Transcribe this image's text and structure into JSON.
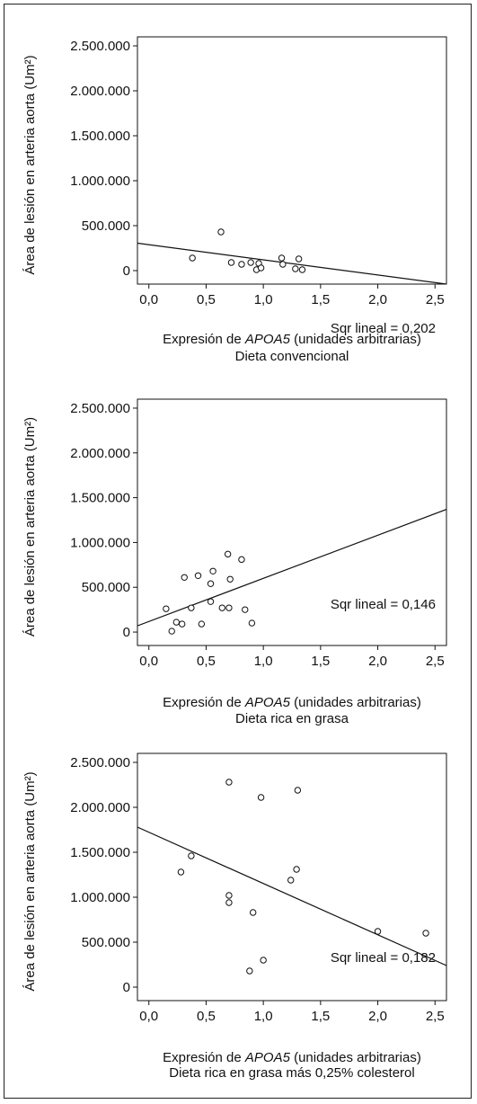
{
  "chart_data": [
    {
      "type": "scatter",
      "ylabel": "Área de lesión en arteria aorta (Um²)",
      "xlabel_prefix": "Expresión de ",
      "xlabel_gene": "APOA5",
      "xlabel_suffix": " (unidades arbitrarias)",
      "subtitle": "Dieta convencional",
      "annotation": "Sqr lineal = 0,202",
      "xlim": [
        -0.1,
        2.6
      ],
      "ylim": [
        -150000,
        2600000
      ],
      "xticks": [
        0,
        0.5,
        1.0,
        1.5,
        2.0,
        2.5
      ],
      "xtick_labels": [
        "0,0",
        "0,5",
        "1,0",
        "1,5",
        "2,0",
        "2,5"
      ],
      "yticks": [
        0,
        500000,
        1000000,
        1500000,
        2000000,
        2500000
      ],
      "ytick_labels": [
        "0",
        "500.000",
        "1.000.000",
        "1.500.000",
        "2.000.000",
        "2.500.000"
      ],
      "points": [
        {
          "x": 0.38,
          "y": 140000
        },
        {
          "x": 0.63,
          "y": 430000
        },
        {
          "x": 0.72,
          "y": 90000
        },
        {
          "x": 0.81,
          "y": 70000
        },
        {
          "x": 0.89,
          "y": 90000
        },
        {
          "x": 0.94,
          "y": 10000
        },
        {
          "x": 0.96,
          "y": 80000
        },
        {
          "x": 0.98,
          "y": 30000
        },
        {
          "x": 1.16,
          "y": 140000
        },
        {
          "x": 1.17,
          "y": 70000
        },
        {
          "x": 1.28,
          "y": 20000
        },
        {
          "x": 1.31,
          "y": 130000
        },
        {
          "x": 1.34,
          "y": 10000
        }
      ],
      "fit_line": {
        "x": [
          -0.1,
          2.6
        ],
        "y": [
          305000,
          -150000
        ]
      }
    },
    {
      "type": "scatter",
      "ylabel": "Área de lesión en arteria aorta (Um²)",
      "xlabel_prefix": "Expresión de ",
      "xlabel_gene": "APOA5",
      "xlabel_suffix": " (unidades arbitrarias)",
      "subtitle": "Dieta rica en grasa",
      "annotation": "Sqr lineal = 0,146",
      "xlim": [
        -0.1,
        2.6
      ],
      "ylim": [
        -150000,
        2600000
      ],
      "xticks": [
        0,
        0.5,
        1.0,
        1.5,
        2.0,
        2.5
      ],
      "xtick_labels": [
        "0,0",
        "0,5",
        "1,0",
        "1,5",
        "2,0",
        "2,5"
      ],
      "yticks": [
        0,
        500000,
        1000000,
        1500000,
        2000000,
        2500000
      ],
      "ytick_labels": [
        "0",
        "500.000",
        "1.000.000",
        "1.500.000",
        "2.000.000",
        "2.500.000"
      ],
      "points": [
        {
          "x": 0.15,
          "y": 260000
        },
        {
          "x": 0.2,
          "y": 10000
        },
        {
          "x": 0.24,
          "y": 110000
        },
        {
          "x": 0.29,
          "y": 90000
        },
        {
          "x": 0.31,
          "y": 610000
        },
        {
          "x": 0.37,
          "y": 270000
        },
        {
          "x": 0.43,
          "y": 630000
        },
        {
          "x": 0.46,
          "y": 90000
        },
        {
          "x": 0.54,
          "y": 540000
        },
        {
          "x": 0.54,
          "y": 340000
        },
        {
          "x": 0.56,
          "y": 680000
        },
        {
          "x": 0.64,
          "y": 270000
        },
        {
          "x": 0.69,
          "y": 870000
        },
        {
          "x": 0.7,
          "y": 270000
        },
        {
          "x": 0.71,
          "y": 590000
        },
        {
          "x": 0.81,
          "y": 810000
        },
        {
          "x": 0.84,
          "y": 250000
        },
        {
          "x": 0.9,
          "y": 100000
        }
      ],
      "fit_line": {
        "x": [
          -0.1,
          2.6
        ],
        "y": [
          70000,
          1370000
        ]
      }
    },
    {
      "type": "scatter",
      "ylabel": "Área de lesión en arteria aorta (Um²)",
      "xlabel_prefix": "Expresión de ",
      "xlabel_gene": "APOA5",
      "xlabel_suffix": " (unidades arbitrarias)",
      "subtitle": "Dieta rica en grasa más 0,25% colesterol",
      "annotation": "Sqr lineal = 0,182",
      "xlim": [
        -0.1,
        2.6
      ],
      "ylim": [
        -150000,
        2600000
      ],
      "xticks": [
        0,
        0.5,
        1.0,
        1.5,
        2.0,
        2.5
      ],
      "xtick_labels": [
        "0,0",
        "0,5",
        "1,0",
        "1,5",
        "2,0",
        "2,5"
      ],
      "yticks": [
        0,
        500000,
        1000000,
        1500000,
        2000000,
        2500000
      ],
      "ytick_labels": [
        "0",
        "500.000",
        "1.000.000",
        "1.500.000",
        "2.000.000",
        "2.500.000"
      ],
      "points": [
        {
          "x": 0.28,
          "y": 1280000
        },
        {
          "x": 0.37,
          "y": 1460000
        },
        {
          "x": 0.7,
          "y": 2280000
        },
        {
          "x": 0.7,
          "y": 1020000
        },
        {
          "x": 0.7,
          "y": 940000
        },
        {
          "x": 0.88,
          "y": 180000
        },
        {
          "x": 0.91,
          "y": 830000
        },
        {
          "x": 0.98,
          "y": 2110000
        },
        {
          "x": 1.0,
          "y": 300000
        },
        {
          "x": 1.24,
          "y": 1190000
        },
        {
          "x": 1.29,
          "y": 1310000
        },
        {
          "x": 1.3,
          "y": 2190000
        },
        {
          "x": 2.0,
          "y": 620000
        },
        {
          "x": 2.42,
          "y": 600000
        }
      ],
      "fit_line": {
        "x": [
          -0.1,
          2.6
        ],
        "y": [
          1780000,
          240000
        ]
      }
    }
  ]
}
